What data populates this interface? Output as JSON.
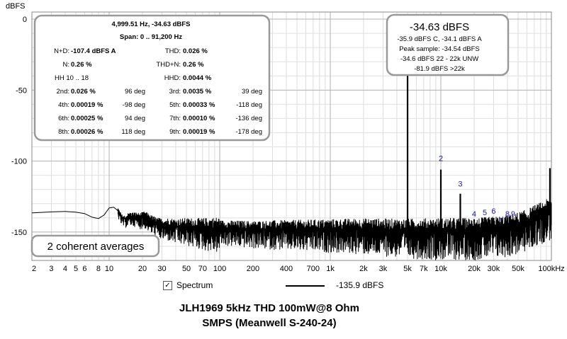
{
  "chart_data": {
    "type": "line",
    "ylabel": "dBFS",
    "x_scale": "log",
    "xlim": [
      2,
      100000
    ],
    "ylim": [
      -170,
      5
    ],
    "grid": true,
    "x_ticks": [
      {
        "v": 2,
        "label": "2"
      },
      {
        "v": 3,
        "label": "3"
      },
      {
        "v": 4,
        "label": "4"
      },
      {
        "v": 5,
        "label": "5"
      },
      {
        "v": 6,
        "label": "6"
      },
      {
        "v": 8,
        "label": "8"
      },
      {
        "v": 10,
        "label": "10"
      },
      {
        "v": 20,
        "label": "20"
      },
      {
        "v": 30,
        "label": "30"
      },
      {
        "v": 50,
        "label": "50"
      },
      {
        "v": 70,
        "label": "70"
      },
      {
        "v": 100,
        "label": "100"
      },
      {
        "v": 200,
        "label": "200"
      },
      {
        "v": 400,
        "label": "400"
      },
      {
        "v": 700,
        "label": "700"
      },
      {
        "v": 1000,
        "label": "1k"
      },
      {
        "v": 2000,
        "label": "2k"
      },
      {
        "v": 3000,
        "label": "3k"
      },
      {
        "v": 5000,
        "label": "5k"
      },
      {
        "v": 7000,
        "label": "7k"
      },
      {
        "v": 10000,
        "label": "10k"
      },
      {
        "v": 20000,
        "label": "20k"
      },
      {
        "v": 30000,
        "label": "30k"
      },
      {
        "v": 50000,
        "label": "50k"
      },
      {
        "v": 100000,
        "label": "100kHz"
      }
    ],
    "y_ticks": [
      {
        "v": 0,
        "label": "0"
      },
      {
        "v": -50,
        "label": "-50"
      },
      {
        "v": -100,
        "label": "-100"
      },
      {
        "v": -150,
        "label": "-150"
      }
    ],
    "series": [
      {
        "name": "Spectrum",
        "value_label": "-135.9 dBFS",
        "color": "#000000",
        "noise_floor_points": [
          [
            2,
            -136.5
          ],
          [
            3,
            -135.8
          ],
          [
            4,
            -135.5
          ],
          [
            5,
            -136
          ],
          [
            6,
            -137
          ],
          [
            7,
            -139.5
          ],
          [
            8,
            -140.5
          ],
          [
            9,
            -138
          ],
          [
            10,
            -133
          ],
          [
            11,
            -132.5
          ],
          [
            12,
            -135
          ],
          [
            13,
            -140
          ],
          [
            14,
            -141
          ],
          [
            15,
            -139
          ],
          [
            17,
            -139
          ],
          [
            19,
            -140
          ],
          [
            21,
            -139
          ],
          [
            24,
            -142
          ],
          [
            27,
            -144
          ],
          [
            30,
            -145
          ],
          [
            35,
            -145
          ],
          [
            40,
            -146
          ],
          [
            50,
            -146
          ],
          [
            70,
            -147
          ],
          [
            100,
            -147
          ],
          [
            200,
            -148
          ],
          [
            400,
            -148
          ],
          [
            700,
            -148
          ],
          [
            1000,
            -148
          ],
          [
            2000,
            -148
          ],
          [
            5000,
            -149
          ],
          [
            10000,
            -149
          ],
          [
            20000,
            -149
          ],
          [
            30000,
            -148
          ],
          [
            40000,
            -147
          ],
          [
            50000,
            -145
          ],
          [
            60000,
            -143
          ],
          [
            70000,
            -140
          ],
          [
            80000,
            -138
          ],
          [
            90000,
            -136
          ],
          [
            100000,
            -135
          ]
        ],
        "peaks": [
          {
            "f": 4999.51,
            "db": -34.63
          },
          {
            "f": 10000,
            "db": -106
          },
          {
            "f": 15000,
            "db": -123
          },
          {
            "f": 20000,
            "db": -141
          },
          {
            "f": 25000,
            "db": -141
          },
          {
            "f": 30000,
            "db": -140
          },
          {
            "f": 35000,
            "db": -143
          },
          {
            "f": 40000,
            "db": -141
          },
          {
            "f": 45000,
            "db": -141
          },
          {
            "f": 97000,
            "db": -105
          }
        ]
      }
    ],
    "annotations": [
      {
        "text": "2",
        "f": 10000,
        "db": -100
      },
      {
        "text": "3",
        "f": 15000,
        "db": -118
      },
      {
        "text": "4",
        "f": 20000,
        "db": -139
      },
      {
        "text": "5",
        "f": 25000,
        "db": -138
      },
      {
        "text": "6",
        "f": 30000,
        "db": -137
      },
      {
        "text": "7",
        "f": 35000,
        "db": -144
      },
      {
        "text": "8",
        "f": 40000,
        "db": -139
      },
      {
        "text": "9",
        "f": 45000,
        "db": -139
      }
    ]
  },
  "info_box": {
    "line1": "4,999.51 Hz, -34.63 dBFS",
    "line2": "Span: 0 .. 91,200 Hz",
    "rows": [
      [
        {
          "t": "N+D:"
        },
        {
          "t": "-107.4 dBFS A",
          "b": true
        },
        {
          "t": ""
        },
        {
          "t": "THD:"
        },
        {
          "t": "0.026 %",
          "b": true
        },
        {
          "t": ""
        }
      ],
      [
        {
          "t": "N:"
        },
        {
          "t": "0.26 %",
          "b": true
        },
        {
          "t": ""
        },
        {
          "t": "THD+N:"
        },
        {
          "t": "0.26 %",
          "b": true
        },
        {
          "t": ""
        }
      ],
      [
        {
          "t": ""
        },
        {
          "t": "HH 10 .. 18"
        },
        {
          "t": ""
        },
        {
          "t": "HHD:"
        },
        {
          "t": "0.0044 %",
          "b": true
        },
        {
          "t": ""
        }
      ],
      [
        {
          "t": "2nd:"
        },
        {
          "t": "0.026 %",
          "b": true
        },
        {
          "t": "96 deg"
        },
        {
          "t": "3rd:"
        },
        {
          "t": "0.0035 %",
          "b": true
        },
        {
          "t": "39 deg"
        }
      ],
      [
        {
          "t": "4th:"
        },
        {
          "t": "0.00019 %",
          "b": true
        },
        {
          "t": "-98 deg"
        },
        {
          "t": "5th:"
        },
        {
          "t": "0.00033 %",
          "b": true
        },
        {
          "t": "-118 deg"
        }
      ],
      [
        {
          "t": "6th:"
        },
        {
          "t": "0.00025 %",
          "b": true
        },
        {
          "t": "94 deg"
        },
        {
          "t": "7th:"
        },
        {
          "t": "0.00010 %",
          "b": true
        },
        {
          "t": "-136 deg"
        }
      ],
      [
        {
          "t": "8th:"
        },
        {
          "t": "0.00026 %",
          "b": true
        },
        {
          "t": "118 deg"
        },
        {
          "t": "9th:"
        },
        {
          "t": "0.00019 %",
          "b": true
        },
        {
          "t": "-178 deg"
        }
      ]
    ]
  },
  "level_box": {
    "title": "-34.63 dBFS",
    "lines": [
      "-35.9 dBFS C, -34.1 dBFS A",
      "Peak sample: -34.54 dBFS",
      "-34.6 dBFS 22 - 22k UNW",
      "-81.9 dBFS >22k"
    ]
  },
  "averages_text": "2 coherent averages",
  "legend": {
    "checkbox_checked": true,
    "checkmark": "✓"
  },
  "caption": {
    "line1": "JLH1969 5kHz THD 100mW@8 Ohm",
    "line2": "SMPS (Meanwell S-240-24)"
  }
}
